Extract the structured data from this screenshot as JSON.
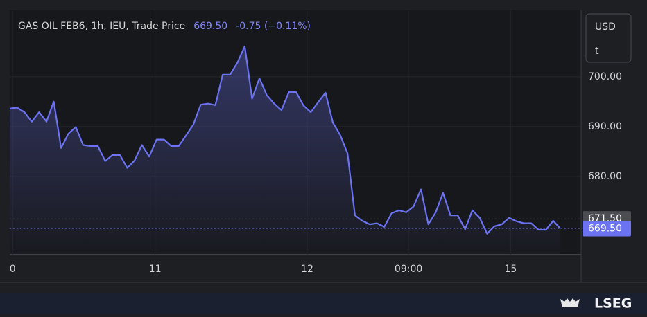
{
  "header": {
    "title": "GAS OIL FEB6, 1h, IEU, Trade Price",
    "price": "669.50",
    "change": "-0.75 (−0.11%)"
  },
  "units": [
    "USD",
    "t"
  ],
  "brand": "LSEG",
  "chart_data": {
    "type": "line",
    "x": [
      0,
      1,
      2,
      3,
      4,
      5,
      6,
      7,
      8,
      9,
      10,
      11,
      12,
      13,
      14,
      15,
      16,
      17,
      18,
      19,
      20,
      21,
      22,
      23,
      24,
      25,
      26,
      27,
      28,
      29,
      30,
      31,
      32,
      33,
      34,
      35,
      36,
      37,
      38,
      39,
      40,
      41,
      42,
      43,
      44,
      45,
      46,
      47,
      48,
      49,
      50,
      51,
      52,
      53,
      54,
      55,
      56,
      57,
      58,
      59,
      60,
      61,
      62,
      63,
      64,
      65,
      66,
      67,
      68,
      69,
      70,
      71,
      72,
      73,
      74,
      75
    ],
    "series": [
      {
        "name": "GAS OIL FEB6",
        "color": "#6b73f2",
        "values": [
          693.6,
          693.8,
          692.9,
          691.0,
          692.9,
          691.0,
          695.0,
          685.7,
          688.6,
          689.9,
          686.3,
          686.1,
          686.1,
          683.1,
          684.3,
          684.3,
          681.7,
          683.2,
          686.3,
          684.0,
          687.4,
          687.4,
          686.1,
          686.1,
          688.2,
          690.4,
          694.4,
          694.6,
          694.3,
          700.4,
          700.4,
          702.8,
          706.1,
          695.6,
          699.7,
          696.3,
          694.6,
          693.3,
          696.9,
          696.9,
          694.2,
          692.9,
          694.9,
          696.8,
          690.8,
          688.3,
          684.6,
          672.2,
          671.1,
          670.4,
          670.6,
          669.9,
          672.6,
          673.2,
          672.8,
          674.0,
          677.4,
          670.4,
          672.8,
          676.7,
          672.2,
          672.2,
          669.4,
          673.2,
          671.7,
          668.5,
          670.0,
          670.4,
          671.7,
          671.0,
          670.6,
          670.6,
          669.3,
          669.3,
          671.1,
          669.5
        ]
      }
    ],
    "xlim": [
      0,
      77.8
    ],
    "xticks": [
      {
        "value": 0.4,
        "label": "0"
      },
      {
        "value": 19.8,
        "label": "11"
      },
      {
        "value": 40.5,
        "label": "12"
      },
      {
        "value": 54.3,
        "label": "09:00"
      },
      {
        "value": 68.2,
        "label": "15"
      }
    ],
    "ylim": [
      664.3,
      713.3
    ],
    "yticks": [
      {
        "value": 680,
        "label": "680.00"
      },
      {
        "value": 690,
        "label": "690.00"
      },
      {
        "value": 700,
        "label": "700.00"
      }
    ],
    "price_tags": [
      {
        "value": 671.5,
        "label": "671.50",
        "color": "#4b4d52"
      },
      {
        "value": 669.5,
        "label": "669.50",
        "color": "#6b73f2"
      }
    ],
    "grid": true
  }
}
